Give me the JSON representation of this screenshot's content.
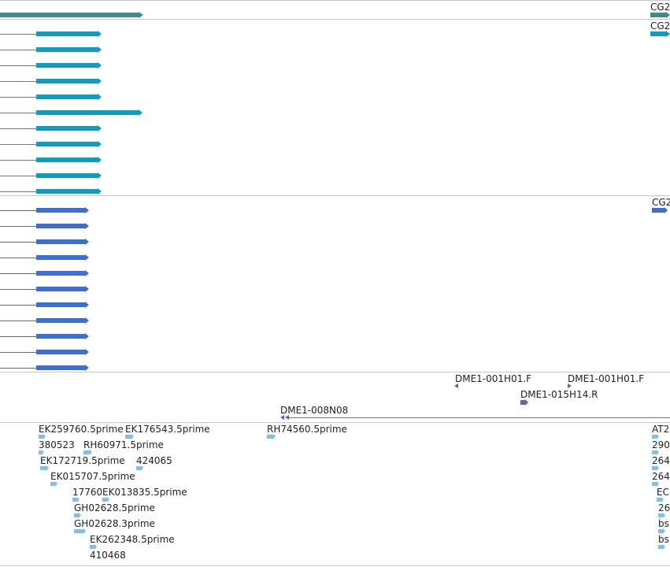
{
  "colors": {
    "flybase_gene": "#3e8a8f",
    "flybase_transcript": "#139bbd",
    "flybase_cds": "#3d6fd1",
    "bac_end": "#7a57b5",
    "bac_line": "#777777",
    "est": "#88bde3",
    "separator": "#c8c8c8"
  },
  "tracks": {
    "genes": {
      "right_label": "CG2"
    },
    "transcripts": {
      "right_label": "CG2"
    },
    "cds": {
      "right_label": "CG2"
    },
    "bac_ends": {
      "features": [
        {
          "label": "DME1-001H01.F",
          "strand": "-"
        },
        {
          "label": "DME1-001H01.F",
          "strand": "+"
        },
        {
          "label": "DME1-015H14.R",
          "strand": "+"
        },
        {
          "label": "DME1-008N08",
          "strand": "-"
        }
      ]
    },
    "ests": {
      "features": [
        "EK259760.5prime",
        "EK176543.5prime",
        "RH74560.5prime",
        "AT2",
        "380523",
        "RH60971.5prime",
        "290",
        "EK172719.5prime",
        "424065",
        "264",
        "EK015707.5prime",
        "264",
        "17760",
        "EK013835.5prime",
        "EC",
        "GH02628.5prime",
        "26",
        "GH02628.3prime",
        "bs",
        "EK262348.5prime",
        "bs",
        "410468"
      ]
    }
  }
}
